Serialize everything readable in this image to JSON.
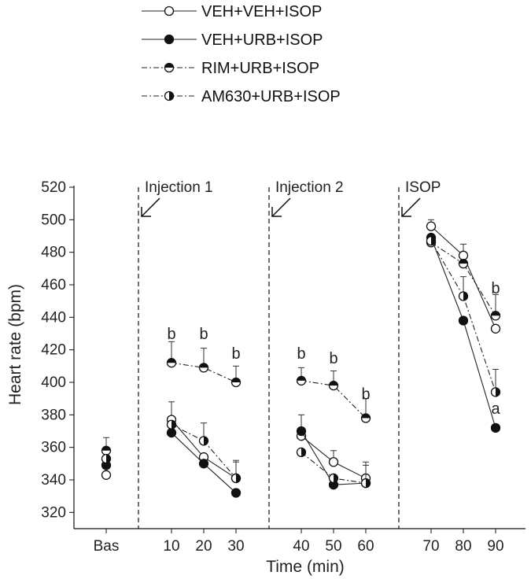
{
  "chart_data": {
    "type": "line",
    "xlabel": "Time (min)",
    "ylabel": "Heart rate (bpm)",
    "ylim": [
      310,
      520
    ],
    "yticks": [
      320,
      340,
      360,
      380,
      400,
      420,
      440,
      460,
      480,
      500,
      520
    ],
    "categories": [
      "Bas",
      "10",
      "20",
      "30",
      "40",
      "50",
      "60",
      "70",
      "80",
      "90"
    ],
    "segments": [
      [
        1,
        3
      ],
      [
        4,
        6
      ],
      [
        7,
        9
      ]
    ],
    "series": [
      {
        "name": "VEH+VEH+ISOP",
        "marker": "open",
        "line": "solid",
        "values": [
          343,
          377,
          354,
          341,
          367,
          351,
          341,
          496,
          478,
          433
        ],
        "errors": [
          0,
          11,
          0,
          10,
          0,
          7,
          8,
          4,
          7,
          0
        ]
      },
      {
        "name": "VEH+URB+ISOP",
        "marker": "filled",
        "line": "solid",
        "values": [
          349,
          369,
          350,
          332,
          370,
          337,
          338,
          489,
          438,
          372
        ],
        "errors": [
          0,
          0,
          0,
          0,
          10,
          0,
          0,
          0,
          0,
          0
        ]
      },
      {
        "name": "RIM+URB+ISOP",
        "marker": "half-top",
        "line": "dashdot",
        "values": [
          358,
          412,
          409,
          400,
          401,
          398,
          378,
          486,
          473,
          441
        ],
        "errors": [
          8,
          13,
          12,
          10,
          8,
          9,
          12,
          0,
          0,
          13
        ]
      },
      {
        "name": "AM630+URB+ISOP",
        "marker": "half-right",
        "line": "dashdot",
        "values": [
          353,
          374,
          364,
          341,
          357,
          341,
          338,
          487,
          453,
          394
        ],
        "errors": [
          0,
          0,
          11,
          11,
          0,
          0,
          13,
          0,
          12,
          14
        ]
      }
    ],
    "annotations": [
      {
        "text": "b",
        "x": "10",
        "y": 430
      },
      {
        "text": "b",
        "x": "20",
        "y": 430
      },
      {
        "text": "b",
        "x": "30",
        "y": 418
      },
      {
        "text": "b",
        "x": "40",
        "y": 418
      },
      {
        "text": "b",
        "x": "50",
        "y": 415
      },
      {
        "text": "b",
        "x": "60",
        "y": 393
      },
      {
        "text": "b",
        "x": "90",
        "y": 458
      },
      {
        "text": "a",
        "x": "90",
        "y": 384
      }
    ],
    "event_lines": [
      {
        "label": "Injection 1",
        "after": "Bas"
      },
      {
        "label": "Injection 2",
        "after": "30"
      },
      {
        "label": "ISOP",
        "after": "60"
      }
    ]
  }
}
